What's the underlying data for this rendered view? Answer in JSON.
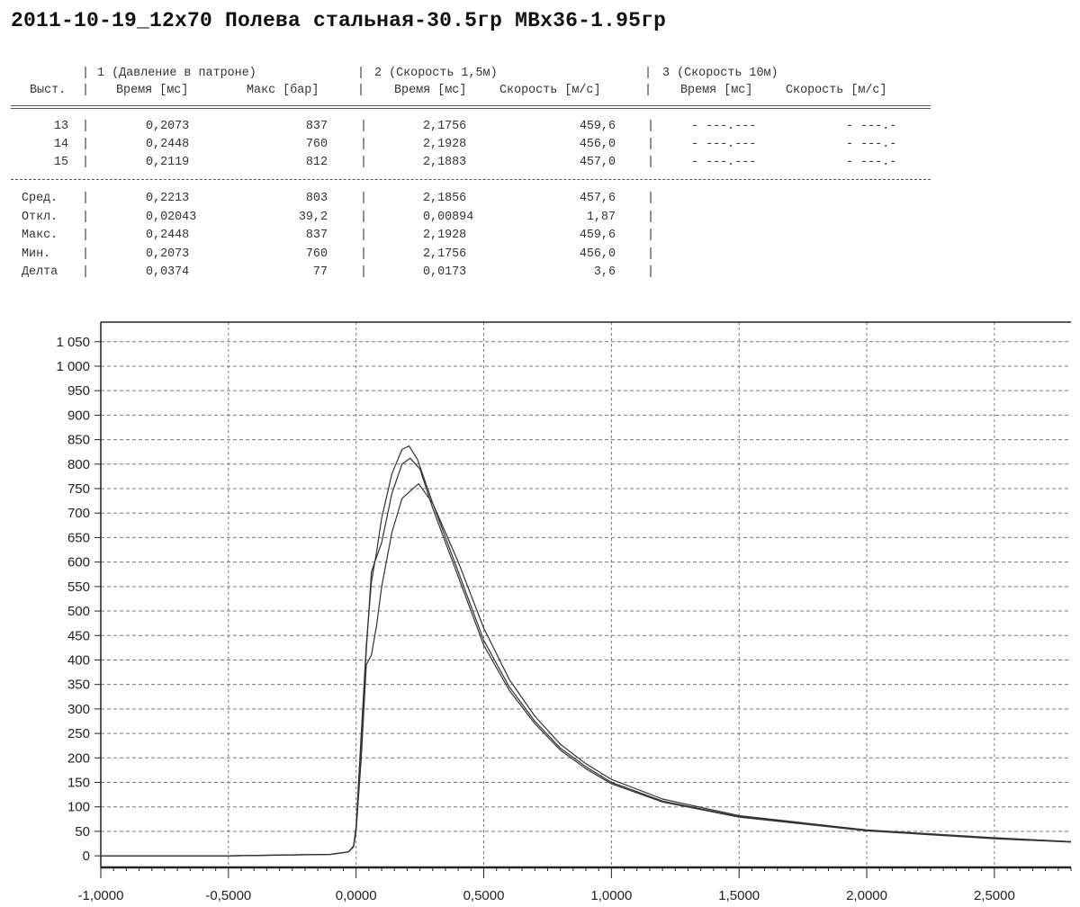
{
  "title": "2011-10-19_12x70 Полева стальная-30.5гр МВх36-1.95гр",
  "table": {
    "group_headers": [
      "1 (Давление в патроне)",
      "2 (Скорость 1,5м)",
      "3 (Скорость 10м)"
    ],
    "column_headers": [
      "Выст.",
      "Время [мс]",
      "Макс [бар]",
      "Время [мс]",
      "Скорость [м/с]",
      "Время [мс]",
      "Скорость [м/с]"
    ],
    "rows": [
      {
        "id": "13",
        "g1_time": "0,2073",
        "g1_max": "837",
        "g2_time": "2,1756",
        "g2_speed": "459,6",
        "g3_time": "- ---.---",
        "g3_speed": "- ---.-"
      },
      {
        "id": "14",
        "g1_time": "0,2448",
        "g1_max": "760",
        "g2_time": "2,1928",
        "g2_speed": "456,0",
        "g3_time": "- ---.---",
        "g3_speed": "- ---.-"
      },
      {
        "id": "15",
        "g1_time": "0,2119",
        "g1_max": "812",
        "g2_time": "2,1883",
        "g2_speed": "457,0",
        "g3_time": "- ---.---",
        "g3_speed": "- ---.-"
      }
    ],
    "stats": [
      {
        "label": "Сред.",
        "g1_time": "0,2213",
        "g1_max": "803",
        "g2_time": "2,1856",
        "g2_speed": "457,6"
      },
      {
        "label": "Откл.",
        "g1_time": "0,02043",
        "g1_max": "39,2",
        "g2_time": "0,00894",
        "g2_speed": "1,87"
      },
      {
        "label": "Макс.",
        "g1_time": "0,2448",
        "g1_max": "837",
        "g2_time": "2,1928",
        "g2_speed": "459,6"
      },
      {
        "label": "Мин.",
        "g1_time": "0,2073",
        "g1_max": "760",
        "g2_time": "2,1756",
        "g2_speed": "456,0"
      },
      {
        "label": "Делта",
        "g1_time": "0,0374",
        "g1_max": "77",
        "g2_time": "0,0173",
        "g2_speed": "3,6"
      }
    ]
  },
  "chart_data": {
    "type": "line",
    "xlim": [
      -1.0,
      2.8
    ],
    "ylim": [
      -20,
      1090
    ],
    "x_ticks": [
      -1.0,
      -0.5,
      0.0,
      0.5,
      1.0,
      1.5,
      2.0,
      2.5
    ],
    "x_tick_labels": [
      "-1,0000",
      "-0,5000",
      "0,0000",
      "0,5000",
      "1,0000",
      "1,5000",
      "2,0000",
      "2,5000"
    ],
    "y_ticks": [
      0,
      50,
      100,
      150,
      200,
      250,
      300,
      350,
      400,
      450,
      500,
      550,
      600,
      650,
      700,
      750,
      800,
      850,
      900,
      950,
      1000,
      1050
    ],
    "y_tick_labels": [
      "0",
      "50",
      "100",
      "150",
      "200",
      "250",
      "300",
      "350",
      "400",
      "450",
      "500",
      "550",
      "600",
      "650",
      "700",
      "750",
      "800",
      "850",
      "900",
      "950",
      "1 000",
      "1 050"
    ],
    "grid": true,
    "series": [
      {
        "x": [
          -1.0,
          -0.5,
          -0.1,
          -0.03,
          -0.01,
          0.0,
          0.02,
          0.04,
          0.06,
          0.08,
          0.1,
          0.14,
          0.18,
          0.2073,
          0.24,
          0.3,
          0.35,
          0.4,
          0.5,
          0.6,
          0.7,
          0.8,
          0.9,
          1.0,
          1.2,
          1.5,
          2.0,
          2.5,
          2.8
        ],
        "y": [
          0,
          0,
          3,
          8,
          20,
          60,
          250,
          430,
          560,
          620,
          690,
          780,
          830,
          837,
          810,
          720,
          650,
          580,
          440,
          345,
          275,
          220,
          182,
          150,
          112,
          80,
          52,
          36,
          29
        ]
      },
      {
        "x": [
          -1.0,
          -0.5,
          -0.1,
          -0.03,
          -0.01,
          0.0,
          0.02,
          0.04,
          0.06,
          0.08,
          0.1,
          0.14,
          0.18,
          0.2448,
          0.3,
          0.35,
          0.4,
          0.5,
          0.6,
          0.7,
          0.8,
          0.9,
          1.0,
          1.2,
          1.5,
          2.0,
          2.5,
          2.8
        ],
        "y": [
          0,
          0,
          3,
          8,
          18,
          50,
          200,
          390,
          410,
          470,
          550,
          660,
          730,
          760,
          720,
          660,
          600,
          465,
          360,
          285,
          228,
          188,
          156,
          116,
          82,
          53,
          37,
          29
        ]
      },
      {
        "x": [
          -1.0,
          -0.5,
          -0.1,
          -0.03,
          -0.01,
          0.0,
          0.02,
          0.04,
          0.06,
          0.08,
          0.1,
          0.14,
          0.18,
          0.2119,
          0.25,
          0.3,
          0.35,
          0.4,
          0.5,
          0.6,
          0.7,
          0.8,
          0.9,
          1.0,
          1.2,
          1.5,
          2.0,
          2.5,
          2.8
        ],
        "y": [
          0,
          0,
          3,
          8,
          19,
          55,
          230,
          420,
          580,
          610,
          640,
          740,
          800,
          812,
          790,
          710,
          640,
          570,
          430,
          338,
          270,
          216,
          178,
          147,
          110,
          79,
          51,
          35,
          28
        ]
      }
    ]
  },
  "colors": {
    "line": "#333333",
    "grid": "#777777",
    "axis": "#222222"
  }
}
